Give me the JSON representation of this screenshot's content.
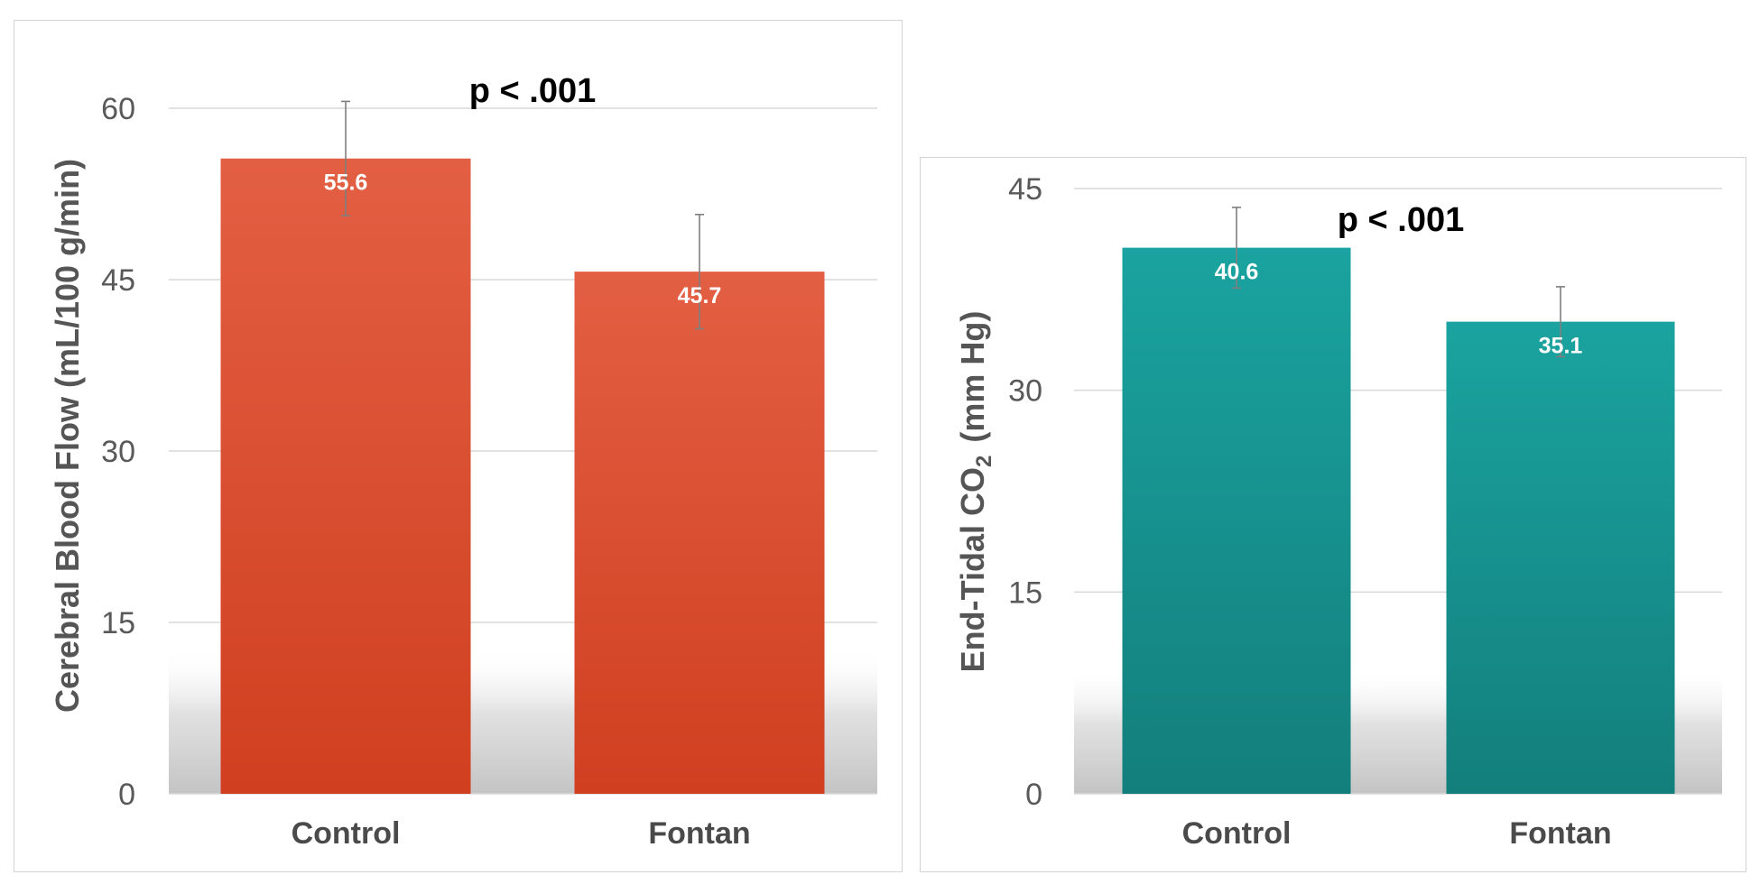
{
  "chart_data": [
    {
      "type": "bar",
      "categories": [
        "Control",
        "Fontan"
      ],
      "values": [
        55.6,
        45.7
      ],
      "errors": [
        5.0,
        5.0
      ],
      "data_labels": [
        "55.6",
        "45.7"
      ],
      "ylabel": "Cerebral Blood Flow  (mL/100 g/min)",
      "yticks": [
        0,
        15,
        30,
        45,
        60
      ],
      "ylim": [
        0,
        60
      ],
      "annotation": "p < .001",
      "bar_color_top": "#e35f43",
      "bar_color_bottom": "#d03f20"
    },
    {
      "type": "bar",
      "categories": [
        "Control",
        "Fontan"
      ],
      "values": [
        40.6,
        35.1
      ],
      "errors": [
        3.0,
        2.6
      ],
      "data_labels": [
        "40.6",
        "35.1"
      ],
      "ylabel_main": "End-Tidal CO",
      "ylabel_sub": "2",
      "ylabel_unit": "(mm Hg)",
      "yticks": [
        0,
        15,
        30,
        45
      ],
      "ylim": [
        0,
        45
      ],
      "annotation": "p < .001",
      "bar_color_top": "#1aa3a0",
      "bar_color_bottom": "#137f7c"
    }
  ],
  "colors": {
    "grid": "#d9d9d9",
    "error_bar": "#7f7f7f",
    "axis_text": "#595959"
  }
}
